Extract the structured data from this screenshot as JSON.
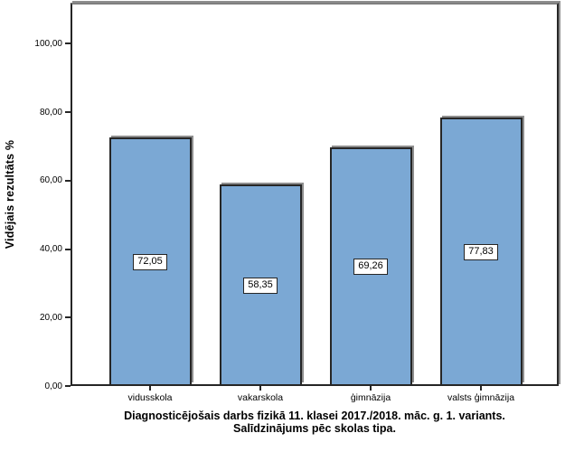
{
  "chart_data": {
    "type": "bar",
    "title_line1": "Diagnosticējošais darbs fizikā 11. klasei 2017./2018. māc. g. 1. variants.",
    "title_line2": "Salīdzinājums pēc skolas tipa.",
    "ylabel": "Vidējais rezultāts %",
    "xlabel": "",
    "categories": [
      "vidusskola",
      "vakarskola",
      "ģimnāzija",
      "valsts ģimnāzija"
    ],
    "values": [
      72.05,
      58.35,
      69.26,
      77.83
    ],
    "value_labels": [
      "72,05",
      "58,35",
      "69,26",
      "77,83"
    ],
    "y_ticks": [
      {
        "value": 0,
        "label": "0,00"
      },
      {
        "value": 20,
        "label": "20,00"
      },
      {
        "value": 40,
        "label": "40,00"
      },
      {
        "value": 60,
        "label": "60,00"
      },
      {
        "value": 80,
        "label": "80,00"
      },
      {
        "value": 100,
        "label": "100,00"
      }
    ],
    "ylim": [
      0,
      112
    ],
    "grid": false,
    "legend": "none",
    "colors": {
      "bar_fill": "#7BA8D4",
      "bar_border": "#262626",
      "frame_top": "#7f7f7f",
      "shadow": "#8e8e8e",
      "text": "#000000",
      "background": "#ffffff"
    }
  }
}
